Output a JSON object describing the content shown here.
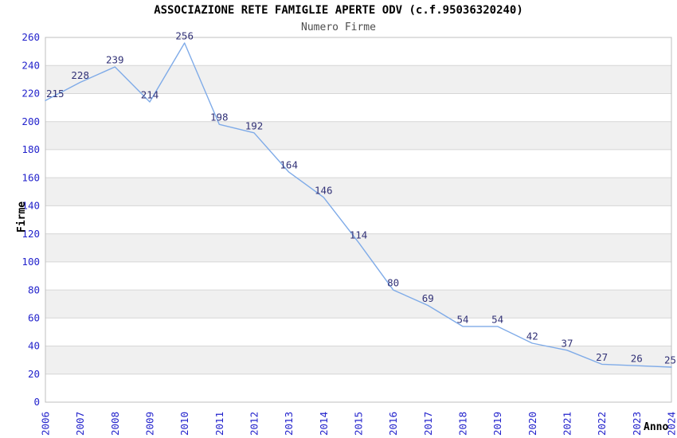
{
  "chart_data": {
    "type": "line",
    "title": "ASSOCIAZIONE RETE FAMIGLIE APERTE ODV (c.f.95036320240)",
    "subtitle": "Numero Firme",
    "xlabel": "Anno",
    "ylabel": "Firme",
    "categories": [
      "2006",
      "2007",
      "2008",
      "2009",
      "2010",
      "2011",
      "2012",
      "2013",
      "2014",
      "2015",
      "2016",
      "2017",
      "2018",
      "2019",
      "2020",
      "2021",
      "2022",
      "2023",
      "2024"
    ],
    "series": [
      {
        "name": "Numero Firme",
        "values": [
          215,
          228,
          239,
          214,
          256,
          198,
          192,
          164,
          146,
          114,
          80,
          69,
          54,
          54,
          42,
          37,
          27,
          26,
          25
        ]
      }
    ],
    "ylim": [
      0,
      260
    ],
    "ytick_step": 20,
    "grid": true,
    "legend": "none",
    "show_point_labels": true,
    "x_tick_rotation": -90,
    "colors": {
      "line": "#7fabe8",
      "axis_tick_label": "#2323cc",
      "point_label": "#323277",
      "band_fill": "#f0f0f0",
      "gridline": "#d6d6d6",
      "plot_border": "#bfbfbf",
      "title": "#000000",
      "subtitle": "#4d4d4d",
      "axis_title": "#000000",
      "background": "#ffffff"
    }
  }
}
